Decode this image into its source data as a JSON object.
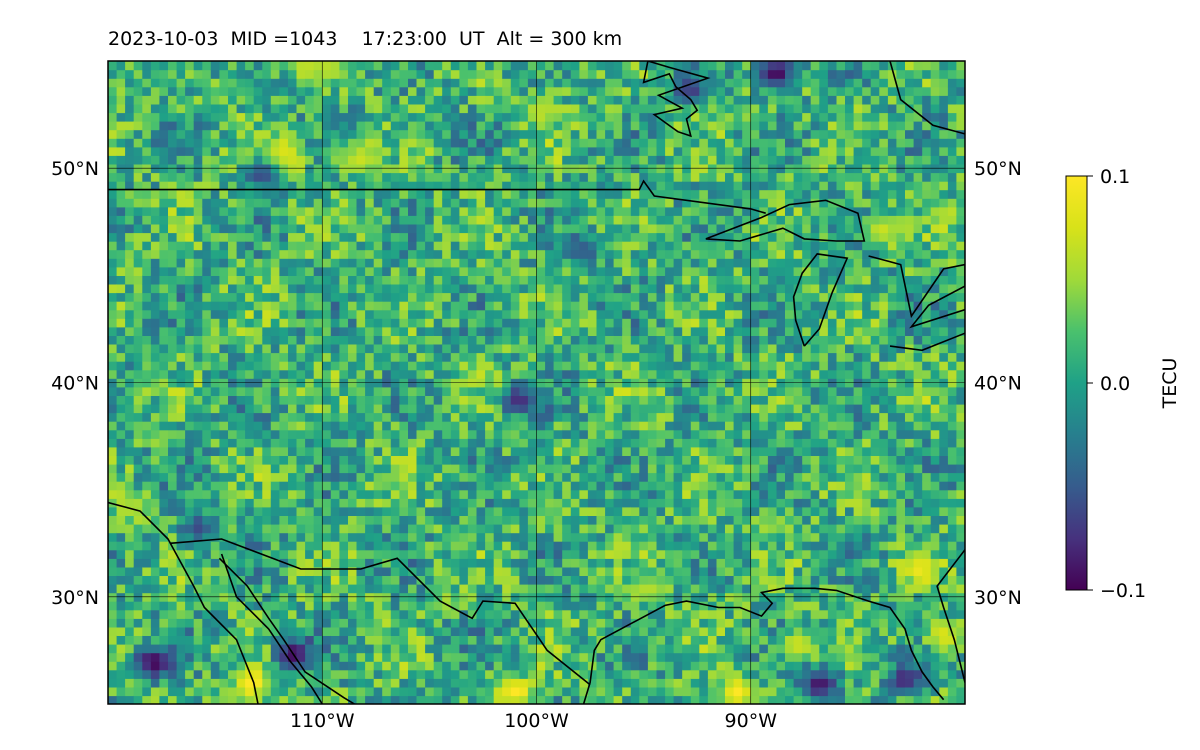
{
  "title": "2023-10-03  MID =1043    17:23:00  UT  Alt = 300 km",
  "chart_data": {
    "type": "heatmap",
    "title": "2023-10-03  MID =1043    17:23:00  UT  Alt = 300 km",
    "xlabel": "",
    "ylabel": "",
    "xlim": [
      -120,
      -80
    ],
    "ylim": [
      25,
      55
    ],
    "x_ticks": [
      {
        "value": -110,
        "label": "110°W"
      },
      {
        "value": -100,
        "label": "100°W"
      },
      {
        "value": -90,
        "label": "90°W"
      }
    ],
    "y_ticks": [
      {
        "value": 30,
        "label": "30°N"
      },
      {
        "value": 40,
        "label": "40°N"
      },
      {
        "value": 50,
        "label": "50°N"
      }
    ],
    "grid": true,
    "colormap": "viridis",
    "colorbar": {
      "label": "TECU",
      "range": [
        -0.1,
        0.1
      ],
      "ticks": [
        {
          "value": 0.1,
          "label": "0.1"
        },
        {
          "value": 0.0,
          "label": "0.0"
        },
        {
          "value": -0.1,
          "label": "−0.1"
        }
      ]
    },
    "hotspots": [
      {
        "lon": -113.5,
        "lat": 25.8,
        "value": 0.1
      },
      {
        "lon": -101.2,
        "lat": 25.4,
        "value": 0.1
      },
      {
        "lon": -90.8,
        "lat": 25.4,
        "value": 0.1
      },
      {
        "lon": -82.3,
        "lat": 31.1,
        "value": 0.09
      },
      {
        "lon": -81.2,
        "lat": 28.0,
        "value": 0.08
      },
      {
        "lon": -88.0,
        "lat": 27.6,
        "value": 0.07
      },
      {
        "lon": -119.0,
        "lat": 34.0,
        "value": 0.06
      },
      {
        "lon": -112.0,
        "lat": 50.6,
        "value": 0.08
      },
      {
        "lon": -108.5,
        "lat": 50.3,
        "value": 0.07
      },
      {
        "lon": -84.0,
        "lat": 46.9,
        "value": 0.07
      },
      {
        "lon": -100.0,
        "lat": 52.5,
        "value": 0.06
      },
      {
        "lon": -95.0,
        "lat": 30.2,
        "value": 0.06
      },
      {
        "lon": -112.0,
        "lat": 50.1,
        "value": 0.08
      },
      {
        "lon": -110.0,
        "lat": 54.5,
        "value": 0.06
      },
      {
        "lon": -118.0,
        "lat": 26.8,
        "value": -0.1
      },
      {
        "lon": -111.5,
        "lat": 27.2,
        "value": -0.1
      },
      {
        "lon": -101.0,
        "lat": 39.0,
        "value": -0.08
      },
      {
        "lon": -87.0,
        "lat": 25.8,
        "value": -0.09
      },
      {
        "lon": -83.0,
        "lat": 26.0,
        "value": -0.08
      },
      {
        "lon": -89.0,
        "lat": 54.3,
        "value": -0.1
      },
      {
        "lon": -93.0,
        "lat": 53.5,
        "value": -0.07
      },
      {
        "lon": -113.0,
        "lat": 49.5,
        "value": -0.06
      },
      {
        "lon": -98.0,
        "lat": 46.0,
        "value": -0.05
      },
      {
        "lon": -116.0,
        "lat": 33.0,
        "value": -0.06
      }
    ],
    "coastlines": [
      {
        "name": "us-canada-border",
        "points": [
          [
            -120,
            49
          ],
          [
            -95.2,
            49
          ],
          [
            -95.0,
            49.4
          ],
          [
            -94.5,
            48.7
          ],
          [
            -90.0,
            48.1
          ],
          [
            -89.3,
            47.9
          ]
        ]
      },
      {
        "name": "lake-superior",
        "points": [
          [
            -92.1,
            46.7
          ],
          [
            -89.5,
            47.7
          ],
          [
            -88.2,
            48.3
          ],
          [
            -86.5,
            48.5
          ],
          [
            -85.0,
            47.9
          ],
          [
            -84.7,
            46.6
          ],
          [
            -86.0,
            46.6
          ],
          [
            -87.5,
            46.7
          ],
          [
            -88.5,
            47.2
          ],
          [
            -90.5,
            46.6
          ],
          [
            -92.1,
            46.7
          ]
        ]
      },
      {
        "name": "lake-michigan",
        "points": [
          [
            -87.5,
            41.7
          ],
          [
            -86.8,
            42.5
          ],
          [
            -86.2,
            44.2
          ],
          [
            -85.5,
            45.8
          ],
          [
            -86.9,
            46.0
          ],
          [
            -87.6,
            45.1
          ],
          [
            -88.0,
            44.0
          ],
          [
            -87.9,
            42.9
          ],
          [
            -87.5,
            41.7
          ]
        ]
      },
      {
        "name": "lake-huron-erie",
        "points": [
          [
            -84.5,
            45.9
          ],
          [
            -83.0,
            45.5
          ],
          [
            -82.5,
            43.1
          ],
          [
            -81.0,
            45.3
          ],
          [
            -80.0,
            45.5
          ],
          [
            -80.0,
            44.5
          ],
          [
            -81.7,
            43.6
          ],
          [
            -82.5,
            42.6
          ],
          [
            -80.0,
            43.4
          ]
        ]
      },
      {
        "name": "lake-erie-south",
        "points": [
          [
            -83.5,
            41.7
          ],
          [
            -82.0,
            41.5
          ],
          [
            -80.0,
            42.3
          ]
        ]
      },
      {
        "name": "hudson-bay",
        "points": [
          [
            -94.8,
            55
          ],
          [
            -95.0,
            54.0
          ],
          [
            -93.8,
            54.4
          ],
          [
            -93.5,
            53.8
          ],
          [
            -92.8,
            53.2
          ],
          [
            -92.5,
            52.7
          ],
          [
            -93.0,
            52.3
          ],
          [
            -92.8,
            51.5
          ],
          [
            -93.4,
            51.7
          ],
          [
            -94.5,
            52.5
          ],
          [
            -93.2,
            52.8
          ],
          [
            -94.3,
            53.4
          ],
          [
            -92.0,
            54.2
          ],
          [
            -93.8,
            54.7
          ],
          [
            -94.8,
            55
          ]
        ]
      },
      {
        "name": "james-bay",
        "points": [
          [
            -83.5,
            55
          ],
          [
            -83.0,
            53.2
          ],
          [
            -81.5,
            52.0
          ],
          [
            -80.0,
            51.6
          ]
        ]
      },
      {
        "name": "mexico-border",
        "points": [
          [
            -117.1,
            32.5
          ],
          [
            -114.7,
            32.7
          ],
          [
            -111.0,
            31.3
          ],
          [
            -108.2,
            31.3
          ],
          [
            -106.5,
            31.8
          ],
          [
            -104.5,
            29.8
          ],
          [
            -103.0,
            29.0
          ],
          [
            -102.5,
            29.8
          ],
          [
            -101.0,
            29.7
          ],
          [
            -99.5,
            27.5
          ],
          [
            -97.5,
            25.9
          ]
        ]
      },
      {
        "name": "baja-california",
        "points": [
          [
            -120,
            34.4
          ],
          [
            -118.5,
            34.0
          ],
          [
            -117.2,
            32.7
          ],
          [
            -116.0,
            30.5
          ],
          [
            -115.5,
            29.5
          ],
          [
            -114.0,
            28.0
          ],
          [
            -113.2,
            26.0
          ],
          [
            -113.0,
            25
          ]
        ]
      },
      {
        "name": "gulf-of-california",
        "points": [
          [
            -114.7,
            32.0
          ],
          [
            -114.0,
            30.0
          ],
          [
            -112.5,
            28.5
          ],
          [
            -111.5,
            27.0
          ],
          [
            -110.5,
            25.8
          ],
          [
            -110.0,
            25
          ]
        ]
      },
      {
        "name": "mexico-mainland",
        "points": [
          [
            -114.8,
            31.8
          ],
          [
            -113.5,
            30.5
          ],
          [
            -112.5,
            29.0
          ],
          [
            -111.8,
            28.0
          ],
          [
            -110.8,
            26.5
          ],
          [
            -109.0,
            25.3
          ],
          [
            -108.5,
            25
          ]
        ]
      },
      {
        "name": "gulf-coast",
        "points": [
          [
            -97.8,
            25
          ],
          [
            -97.5,
            26.0
          ],
          [
            -97.3,
            27.5
          ],
          [
            -97.0,
            28.0
          ],
          [
            -95.5,
            28.8
          ],
          [
            -94.0,
            29.6
          ],
          [
            -93.0,
            29.8
          ],
          [
            -91.5,
            29.5
          ],
          [
            -90.5,
            29.5
          ],
          [
            -89.5,
            29.1
          ],
          [
            -89.0,
            29.7
          ],
          [
            -89.5,
            30.2
          ],
          [
            -88.5,
            30.4
          ],
          [
            -87.0,
            30.4
          ],
          [
            -86.0,
            30.3
          ],
          [
            -84.5,
            29.8
          ],
          [
            -83.5,
            29.5
          ],
          [
            -82.8,
            28.5
          ],
          [
            -82.5,
            27.5
          ],
          [
            -82.0,
            26.5
          ],
          [
            -81.5,
            25.8
          ],
          [
            -81.0,
            25.2
          ]
        ]
      },
      {
        "name": "florida-east",
        "points": [
          [
            -80.0,
            26.0
          ],
          [
            -80.5,
            28.0
          ],
          [
            -81.0,
            29.5
          ],
          [
            -81.3,
            30.5
          ],
          [
            -80.0,
            32.2
          ]
        ]
      }
    ]
  }
}
